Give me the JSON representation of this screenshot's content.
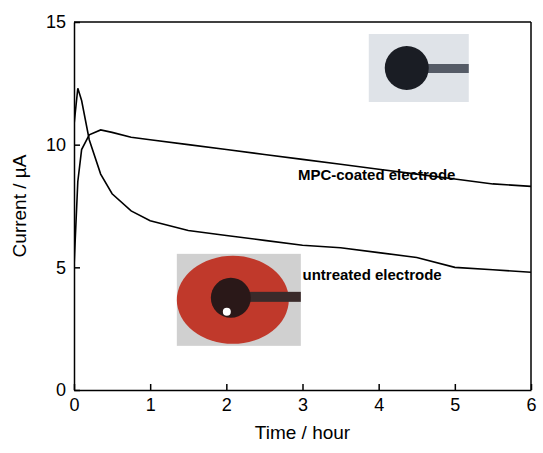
{
  "chart_data": {
    "type": "line",
    "x_label": "Time / hour",
    "y_label": "Current / µA",
    "x": [
      0,
      0.05,
      0.1,
      0.2,
      0.35,
      0.5,
      0.75,
      1,
      1.5,
      2,
      2.5,
      3,
      3.5,
      4,
      4.5,
      5,
      5.5,
      6
    ],
    "series": [
      {
        "name": "MPC-coated electrode",
        "color": "#000000",
        "values": [
          5.0,
          8.5,
          9.8,
          10.4,
          10.6,
          10.5,
          10.3,
          10.2,
          10.0,
          9.8,
          9.6,
          9.4,
          9.2,
          9.0,
          8.8,
          8.6,
          8.4,
          8.3
        ]
      },
      {
        "name": "untreated electrode",
        "color": "#000000",
        "values": [
          10.8,
          12.3,
          11.8,
          10.2,
          8.8,
          8.0,
          7.3,
          6.9,
          6.5,
          6.3,
          6.1,
          5.9,
          5.8,
          5.6,
          5.4,
          5.0,
          4.9,
          4.8
        ]
      }
    ],
    "xlim": [
      0,
      6
    ],
    "xticks": [
      0,
      1,
      2,
      3,
      4,
      5,
      6
    ],
    "ylim": [
      0,
      15
    ],
    "yticks": [
      0,
      5,
      10,
      15
    ]
  }
}
